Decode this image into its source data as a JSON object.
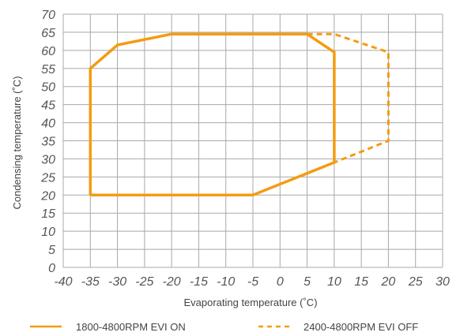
{
  "chart_data": {
    "type": "line",
    "title": "",
    "xlabel": "Evaporating temperature (˚C)",
    "ylabel": "Condensing temperature (˚C)",
    "xlim": [
      -40,
      30
    ],
    "ylim": [
      0,
      70
    ],
    "xticks": [
      -40,
      -35,
      -30,
      -25,
      -20,
      -15,
      -10,
      -5,
      0,
      5,
      10,
      15,
      20,
      25,
      30
    ],
    "yticks": [
      0,
      5,
      10,
      15,
      20,
      25,
      30,
      35,
      40,
      45,
      50,
      55,
      60,
      65,
      70
    ],
    "grid": true,
    "legend_position": "bottom",
    "series": [
      {
        "name": "1800-4800RPM EVI ON",
        "style": "solid",
        "color": "#F39C12",
        "points": [
          [
            -35,
            20
          ],
          [
            -5,
            20
          ],
          [
            10,
            29
          ],
          [
            10,
            59.5
          ],
          [
            5,
            64.5
          ],
          [
            -20,
            64.5
          ],
          [
            -30,
            61.5
          ],
          [
            -35,
            55
          ],
          [
            -35,
            20
          ]
        ]
      },
      {
        "name": "2400-4800RPM EVI OFF",
        "style": "dashed",
        "color": "#F39C12",
        "points": [
          [
            5,
            64.5
          ],
          [
            10,
            64.5
          ],
          [
            20,
            59.5
          ],
          [
            20,
            35
          ],
          [
            10,
            29
          ]
        ]
      }
    ]
  }
}
